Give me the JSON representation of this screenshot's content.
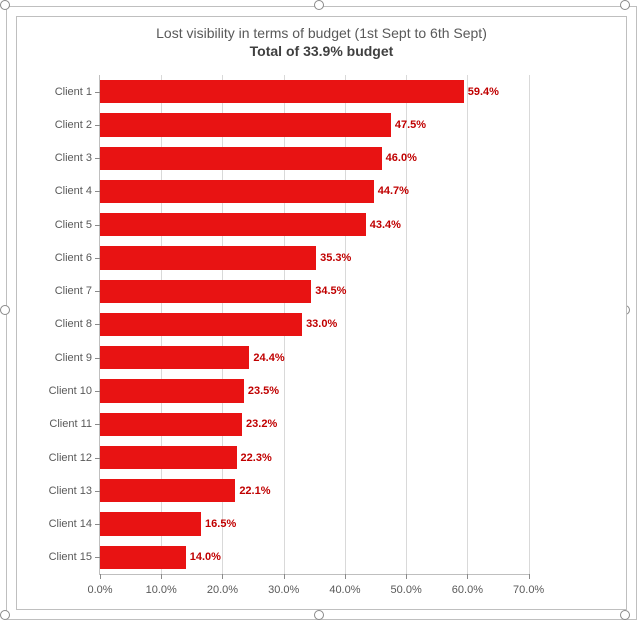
{
  "chart": {
    "type": "bar-horizontal",
    "title_line1": "Lost visibility in terms of budget (1st Sept to 6th Sept)",
    "title_line2": "Total of 33.9% budget",
    "title_fontsize": 14,
    "title_line1_weight": 400,
    "title_line2_weight": 700,
    "title_color": "#595959",
    "background_color": "#ffffff",
    "panel_border_color": "#bfbfbf",
    "selection_border_color": "#bfbfbf",
    "handle_border_color": "#8a8a8a",
    "axis_line_color": "#bfbfbf",
    "grid_color": "#d9d9d9",
    "tick_color": "#8a8a8a",
    "axis_label_color": "#595959",
    "axis_label_fontsize": 11,
    "bar_color": "#e81313",
    "data_label_color": "#c00000",
    "data_label_fontsize": 11,
    "data_label_weight": 700,
    "x_min": 0.0,
    "x_max": 0.7,
    "x_tick_step": 0.1,
    "x_tick_labels": [
      "0.0%",
      "10.0%",
      "20.0%",
      "30.0%",
      "40.0%",
      "50.0%",
      "60.0%",
      "70.0%"
    ],
    "bar_fill_ratio": 0.7,
    "categories": [
      "Client 1",
      "Client 2",
      "Client 3",
      "Client 4",
      "Client 5",
      "Client 6",
      "Client 7",
      "Client 8",
      "Client 9",
      "Client 10",
      "Client 11",
      "Client 12",
      "Client 13",
      "Client 14",
      "Client 15"
    ],
    "values": [
      0.594,
      0.475,
      0.46,
      0.447,
      0.434,
      0.353,
      0.345,
      0.33,
      0.244,
      0.235,
      0.232,
      0.223,
      0.221,
      0.165,
      0.14
    ],
    "value_labels": [
      "59.4%",
      "47.5%",
      "46.0%",
      "44.7%",
      "43.4%",
      "35.3%",
      "34.5%",
      "33.0%",
      "24.4%",
      "23.5%",
      "23.2%",
      "22.3%",
      "22.1%",
      "16.5%",
      "14.0%"
    ]
  }
}
